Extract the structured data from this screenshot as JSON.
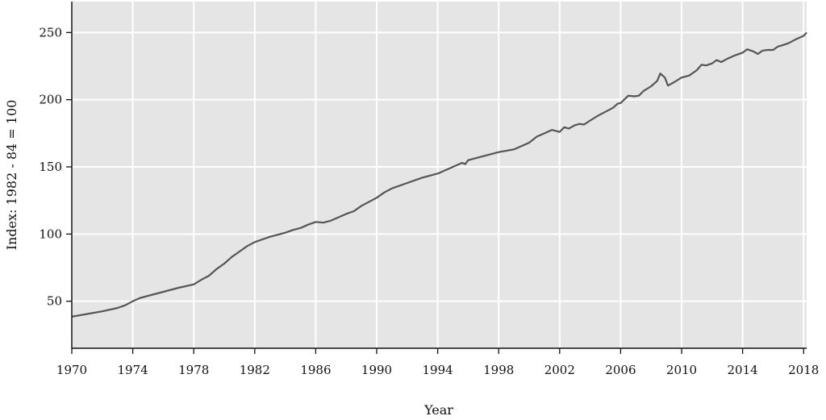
{
  "chart_data": {
    "type": "line",
    "title": "",
    "xlabel": "Year",
    "ylabel": "Index: 1982 - 84 = 100",
    "xlim": [
      1970,
      2018.2
    ],
    "ylim": [
      15,
      273
    ],
    "x_ticks": [
      1970,
      1974,
      1978,
      1982,
      1986,
      1990,
      1994,
      1998,
      2002,
      2006,
      2010,
      2014,
      2018
    ],
    "y_ticks": [
      50,
      100,
      150,
      200,
      250
    ],
    "grid": true,
    "legend": "none",
    "colors": {
      "panel_bg": "#e5e5e5",
      "grid": "#ffffff",
      "line": "#555555",
      "axis": "#111111"
    },
    "series": [
      {
        "x": [
          1970.0,
          1971.0,
          1972.0,
          1973.0,
          1973.5,
          1974.0,
          1974.5,
          1975.0,
          1976.0,
          1977.0,
          1978.0,
          1978.5,
          1979.0,
          1979.5,
          1980.0,
          1980.5,
          1981.0,
          1981.5,
          1982.0,
          1982.5,
          1983.0,
          1983.5,
          1984.0,
          1984.5,
          1985.0,
          1985.5,
          1986.0,
          1986.5,
          1987.0,
          1987.5,
          1988.0,
          1988.5,
          1989.0,
          1989.5,
          1990.0,
          1990.5,
          1991.0,
          1992.0,
          1993.0,
          1994.0,
          1995.0,
          1995.6,
          1995.8,
          1996.0,
          1997.0,
          1998.0,
          1999.0,
          2000.0,
          2000.5,
          2001.0,
          2001.5,
          2002.0,
          2002.3,
          2002.6,
          2003.0,
          2003.3,
          2003.6,
          2004.0,
          2004.5,
          2005.0,
          2005.5,
          2005.8,
          2006.0,
          2006.5,
          2006.9,
          2007.2,
          2007.5,
          2008.0,
          2008.4,
          2008.6,
          2008.9,
          2009.1,
          2009.5,
          2010.0,
          2010.5,
          2011.0,
          2011.3,
          2011.6,
          2012.0,
          2012.3,
          2012.6,
          2013.0,
          2013.5,
          2014.0,
          2014.3,
          2014.7,
          2015.0,
          2015.3,
          2015.6,
          2016.0,
          2016.3,
          2016.6,
          2017.0,
          2017.5,
          2018.0,
          2018.2
        ],
        "y": [
          38.5,
          40.5,
          42.5,
          45.0,
          47.0,
          50.0,
          52.5,
          54.0,
          57.0,
          60.0,
          62.5,
          66.0,
          69.0,
          74.0,
          78.0,
          83.0,
          87.0,
          91.0,
          94.0,
          96.0,
          98.0,
          99.5,
          101.0,
          103.0,
          104.5,
          107.0,
          109.0,
          108.5,
          110.0,
          112.5,
          115.0,
          117.0,
          121.0,
          124.0,
          127.0,
          131.0,
          134.0,
          138.0,
          142.0,
          145.0,
          150.0,
          153.0,
          152.0,
          155.0,
          158.0,
          161.0,
          163.0,
          168.0,
          172.5,
          175.0,
          177.5,
          176.0,
          179.5,
          178.5,
          181.0,
          182.0,
          181.5,
          184.5,
          188.0,
          191.0,
          194.0,
          197.0,
          197.5,
          203.0,
          202.5,
          203.0,
          206.5,
          210.0,
          214.0,
          219.5,
          216.5,
          210.5,
          213.0,
          216.5,
          218.0,
          222.0,
          226.0,
          225.5,
          227.0,
          229.5,
          228.0,
          230.5,
          233.0,
          235.0,
          237.5,
          236.0,
          234.0,
          236.5,
          237.0,
          237.0,
          239.5,
          240.5,
          242.0,
          245.0,
          247.5,
          250.0
        ]
      }
    ]
  }
}
